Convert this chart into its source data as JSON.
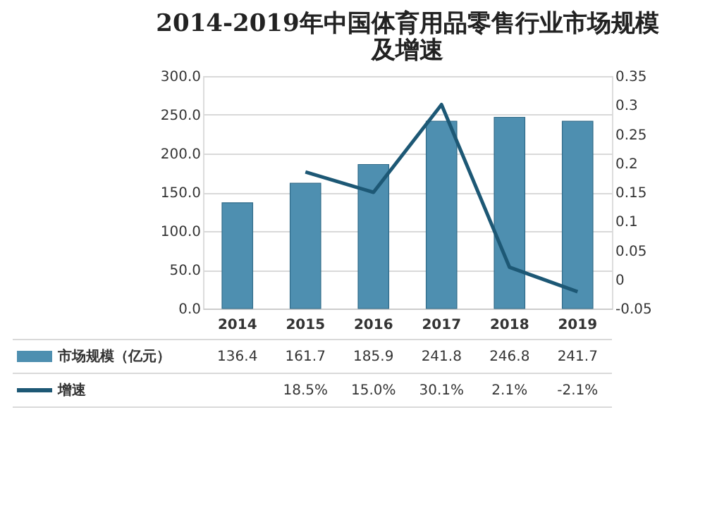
{
  "chart_data": {
    "type": "bar",
    "title": "2014-2019年中国体育用品零售行业市场规模及增速",
    "categories": [
      "2014",
      "2015",
      "2016",
      "2017",
      "2018",
      "2019"
    ],
    "series": [
      {
        "name": "市场规模（亿元）",
        "color": "#4e8fb0",
        "values": [
          136.4,
          161.7,
          185.9,
          241.8,
          246.8,
          241.7
        ],
        "value_labels": [
          "136.4",
          "161.7",
          "185.9",
          "241.8",
          "246.8",
          "241.7"
        ]
      },
      {
        "name": "增速",
        "type": "line",
        "axis": "y2",
        "color": "#1d5875",
        "values": [
          null,
          0.185,
          0.15,
          0.301,
          0.021,
          -0.021
        ],
        "value_labels": [
          null,
          "18.5%",
          "15.0%",
          "30.1%",
          "2.1%",
          "-2.1%"
        ]
      }
    ],
    "ylim": [
      0,
      300
    ],
    "yticks": [
      {
        "value": 0,
        "label": "0.0"
      },
      {
        "value": 50,
        "label": "50.0"
      },
      {
        "value": 100,
        "label": "100.0"
      },
      {
        "value": 150,
        "label": "150.0"
      },
      {
        "value": 200,
        "label": "200.0"
      },
      {
        "value": 250,
        "label": "250.0"
      },
      {
        "value": 300,
        "label": "300.0"
      }
    ],
    "y2lim": [
      -0.05,
      0.35
    ],
    "y2ticks": [
      -0.05,
      0,
      0.05,
      0.1,
      0.15,
      0.2,
      0.25,
      0.3,
      0.35
    ],
    "grid": "y",
    "legend": "bottom",
    "marker": "none",
    "line_style": "solid"
  }
}
